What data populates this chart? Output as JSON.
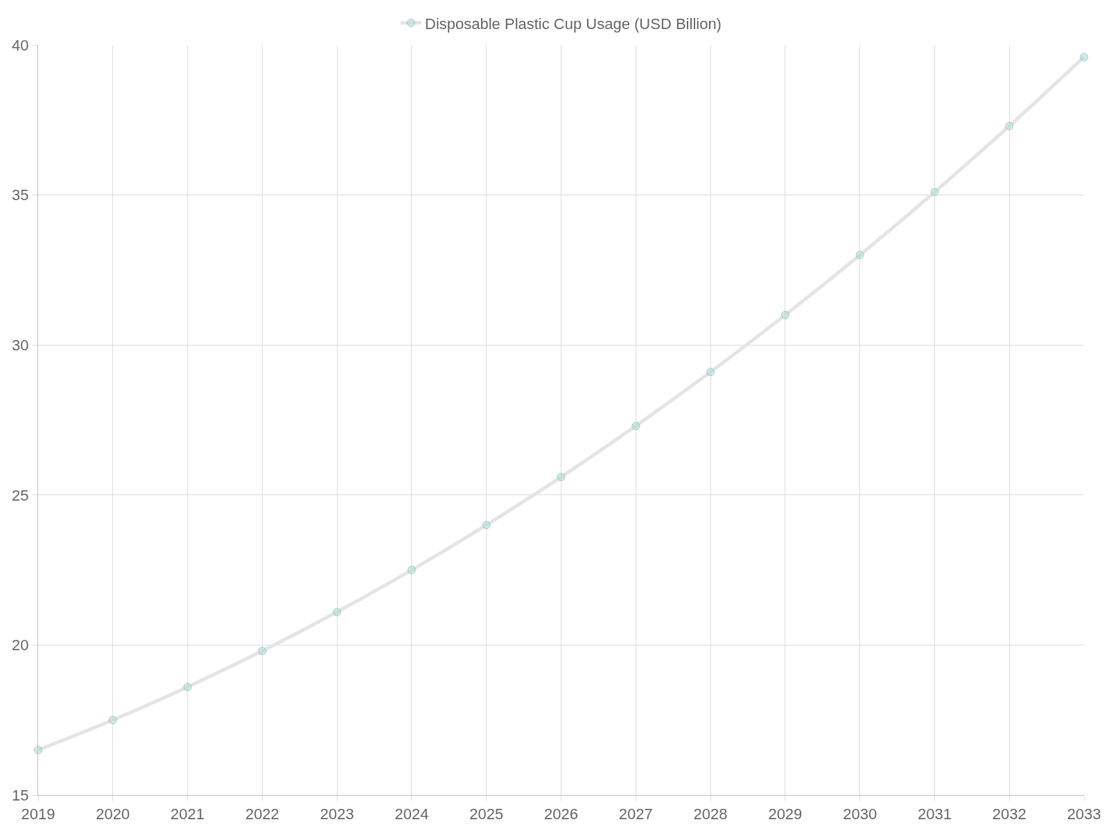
{
  "chart_data": {
    "type": "line",
    "x": [
      2019,
      2020,
      2021,
      2022,
      2023,
      2024,
      2025,
      2026,
      2027,
      2028,
      2029,
      2030,
      2031,
      2032,
      2033
    ],
    "series": [
      {
        "name": "Disposable Plastic Cup Usage (USD Billion)",
        "color": "#e4e4e4",
        "values": [
          16.5,
          17.5,
          18.6,
          19.8,
          21.1,
          22.5,
          24.0,
          25.6,
          27.3,
          29.1,
          31.0,
          33.0,
          35.1,
          37.3,
          39.6
        ]
      }
    ],
    "xlim": [
      2019,
      2033
    ],
    "xticks": [
      2019,
      2020,
      2021,
      2022,
      2023,
      2024,
      2025,
      2026,
      2027,
      2028,
      2029,
      2030,
      2031,
      2032,
      2033
    ],
    "ylim": [
      15,
      40
    ],
    "yticks": [
      15,
      20,
      25,
      30,
      35,
      40
    ],
    "grid": true,
    "legend": "top",
    "marker": "circle",
    "line_style": "solid"
  }
}
